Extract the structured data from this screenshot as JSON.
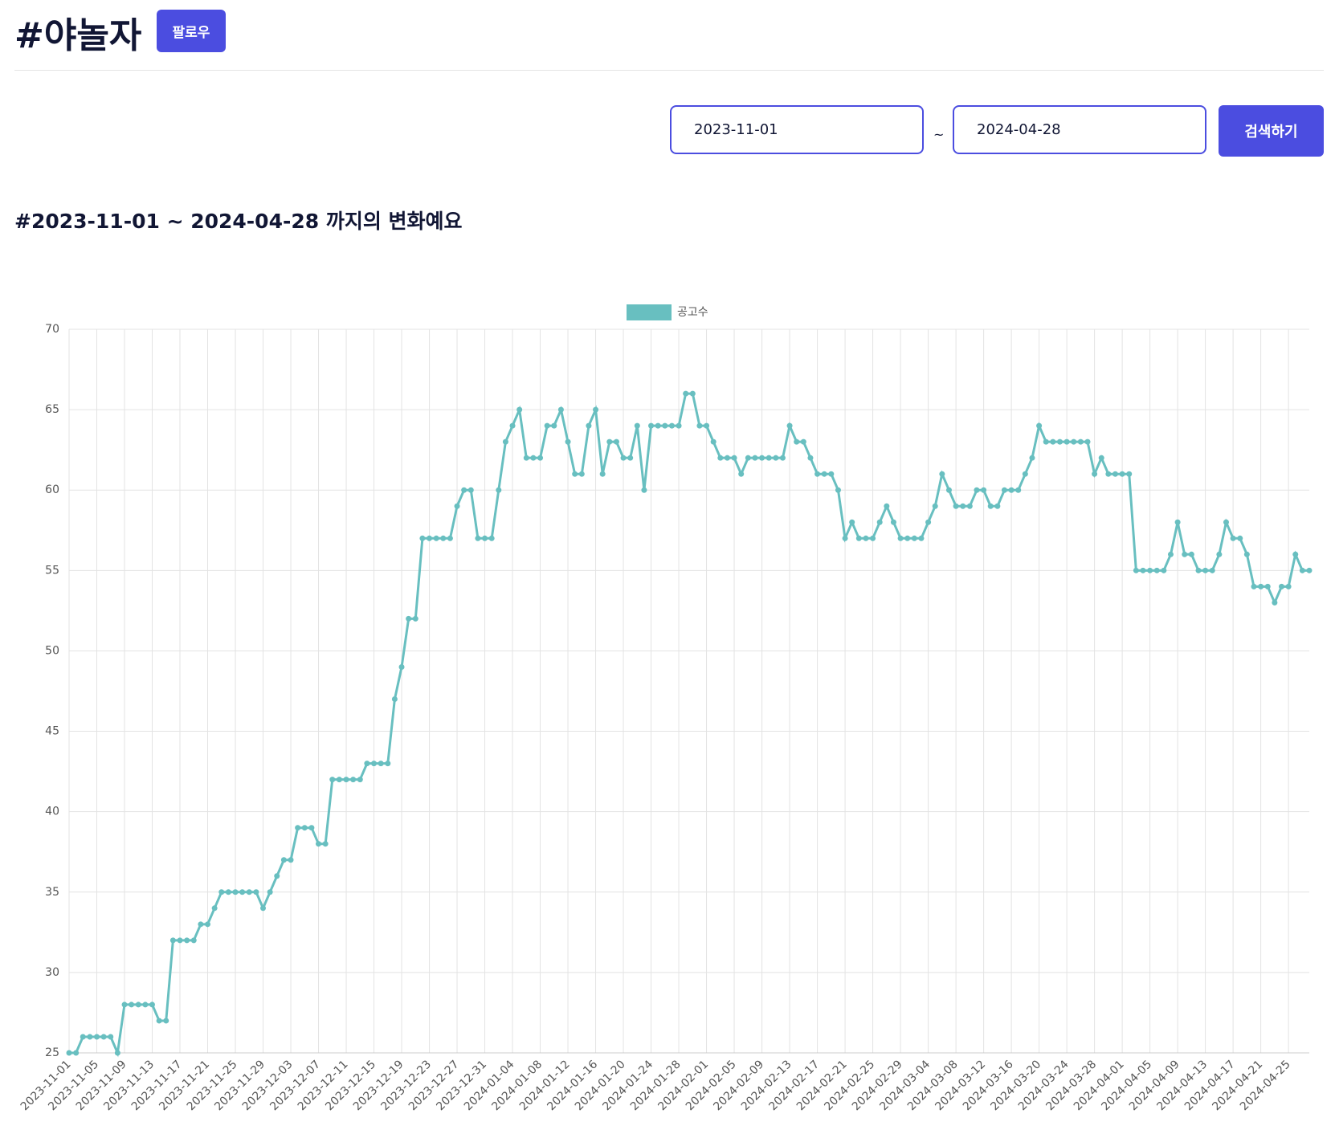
{
  "header": {
    "title": "#야놀자",
    "follow_button": "팔로우"
  },
  "search": {
    "start_date": "2023-11-01",
    "separator": "~",
    "end_date": "2024-04-28",
    "button": "검색하기"
  },
  "heading": "#2023-11-01 ~ 2024-04-28 까지의 변화예요",
  "chart_data": {
    "type": "line",
    "categories": [
      "2023-11-01",
      null,
      null,
      null,
      "2023-11-05",
      null,
      null,
      null,
      "2023-11-09",
      null,
      null,
      null,
      "2023-11-13",
      null,
      null,
      null,
      "2023-11-17",
      null,
      null,
      null,
      "2023-11-21",
      null,
      null,
      null,
      "2023-11-25",
      null,
      null,
      null,
      "2023-11-29",
      null,
      null,
      null,
      "2023-12-03",
      null,
      null,
      null,
      "2023-12-07",
      null,
      null,
      null,
      "2023-12-11",
      null,
      null,
      null,
      "2023-12-15",
      null,
      null,
      null,
      "2023-12-19",
      null,
      null,
      null,
      "2023-12-23",
      null,
      null,
      null,
      "2023-12-27",
      null,
      null,
      null,
      "2023-12-31",
      null,
      null,
      null,
      "2024-01-04",
      null,
      null,
      null,
      "2024-01-08",
      null,
      null,
      null,
      "2024-01-12",
      null,
      null,
      null,
      "2024-01-16",
      null,
      null,
      null,
      "2024-01-20",
      null,
      null,
      null,
      "2024-01-24",
      null,
      null,
      null,
      "2024-01-28",
      null,
      null,
      null,
      "2024-02-01",
      null,
      null,
      null,
      "2024-02-05",
      null,
      null,
      null,
      "2024-02-09",
      null,
      null,
      null,
      "2024-02-13",
      null,
      null,
      null,
      "2024-02-17",
      null,
      null,
      null,
      "2024-02-21",
      null,
      null,
      null,
      "2024-02-25",
      null,
      null,
      null,
      "2024-02-29",
      null,
      null,
      null,
      "2024-03-04",
      null,
      null,
      null,
      "2024-03-08",
      null,
      null,
      null,
      "2024-03-12",
      null,
      null,
      null,
      "2024-03-16",
      null,
      null,
      null,
      "2024-03-20",
      null,
      null,
      null,
      "2024-03-24",
      null,
      null,
      null,
      "2024-03-28",
      null,
      null,
      null,
      "2024-04-01",
      null,
      null,
      null,
      "2024-04-05",
      null,
      null,
      null,
      "2024-04-09",
      null,
      null,
      null,
      "2024-04-13",
      null,
      null,
      null,
      "2024-04-17",
      null,
      null,
      null,
      "2024-04-21",
      null,
      null,
      null,
      "2024-04-25",
      null,
      null,
      null
    ],
    "series": [
      {
        "name": "공고수",
        "color": "#68bfc0",
        "values": [
          25,
          25,
          26,
          26,
          26,
          26,
          26,
          25,
          28,
          28,
          28,
          28,
          28,
          27,
          27,
          32,
          32,
          32,
          32,
          33,
          33,
          34,
          35,
          35,
          35,
          35,
          35,
          35,
          34,
          35,
          36,
          37,
          37,
          39,
          39,
          39,
          38,
          38,
          42,
          42,
          42,
          42,
          42,
          43,
          43,
          43,
          43,
          47,
          49,
          52,
          52,
          57,
          57,
          57,
          57,
          57,
          59,
          60,
          60,
          57,
          57,
          57,
          60,
          63,
          64,
          65,
          62,
          62,
          62,
          64,
          64,
          65,
          63,
          61,
          61,
          64,
          65,
          61,
          63,
          63,
          62,
          62,
          64,
          60,
          64,
          64,
          64,
          64,
          64,
          66,
          66,
          64,
          64,
          63,
          62,
          62,
          62,
          61,
          62,
          62,
          62,
          62,
          62,
          62,
          64,
          63,
          63,
          62,
          61,
          61,
          61,
          60,
          57,
          58,
          57,
          57,
          57,
          58,
          59,
          58,
          57,
          57,
          57,
          57,
          58,
          59,
          61,
          60,
          59,
          59,
          59,
          60,
          60,
          59,
          59,
          60,
          60,
          60,
          61,
          62,
          64,
          63,
          63,
          63,
          63,
          63,
          63,
          63,
          61,
          62,
          61,
          61,
          61,
          61,
          55,
          55,
          55,
          55,
          55,
          56,
          58,
          56,
          56,
          55,
          55,
          55,
          56,
          58,
          57,
          57,
          56,
          54,
          54,
          54,
          53,
          54,
          54,
          56,
          55,
          55
        ]
      }
    ],
    "ylim": [
      25,
      70
    ],
    "yticks": [
      25,
      30,
      35,
      40,
      45,
      50,
      55,
      60,
      65,
      70
    ],
    "grid": true
  }
}
